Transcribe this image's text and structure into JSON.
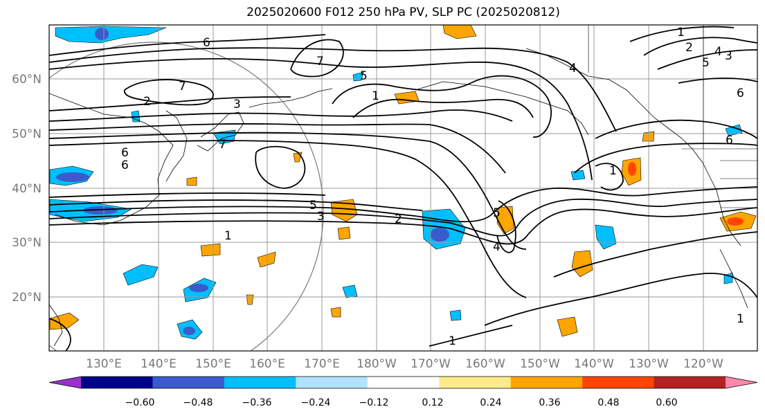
{
  "title": "2025020600 F012 250 hPa PV, SLP PC (2025020812)",
  "lat_labels": [
    "60°N",
    "50°N",
    "40°N",
    "30°N",
    "20°N"
  ],
  "lon_labels": [
    "130°E",
    "140°E",
    "150°E",
    "160°E",
    "170°E",
    "180°W",
    "170°W",
    "160°W",
    "150°W",
    "140°W",
    "130°W",
    "120°W"
  ],
  "colorbar": {
    "colors": [
      "#9932cc",
      "#00008b",
      "#3a5bcc",
      "#00bfff",
      "#b0e2ff",
      "#ffffff",
      "#ffeb8a",
      "#ffa500",
      "#ff4500",
      "#b22222",
      "#ff88aa"
    ],
    "tick_labels": [
      "−0.60",
      "−0.48",
      "−0.36",
      "−0.24",
      "−0.12",
      "0.12",
      "0.24",
      "0.36",
      "0.48",
      "0.60"
    ]
  },
  "contour_labels": [
    "6",
    "7",
    "5",
    "1",
    "3",
    "7",
    "6",
    "2",
    "4",
    "5",
    "3",
    "2",
    "1",
    "6",
    "7",
    "1",
    "5",
    "3",
    "4",
    "2",
    "1",
    "5",
    "4",
    "6",
    "1",
    "6",
    "1"
  ]
}
